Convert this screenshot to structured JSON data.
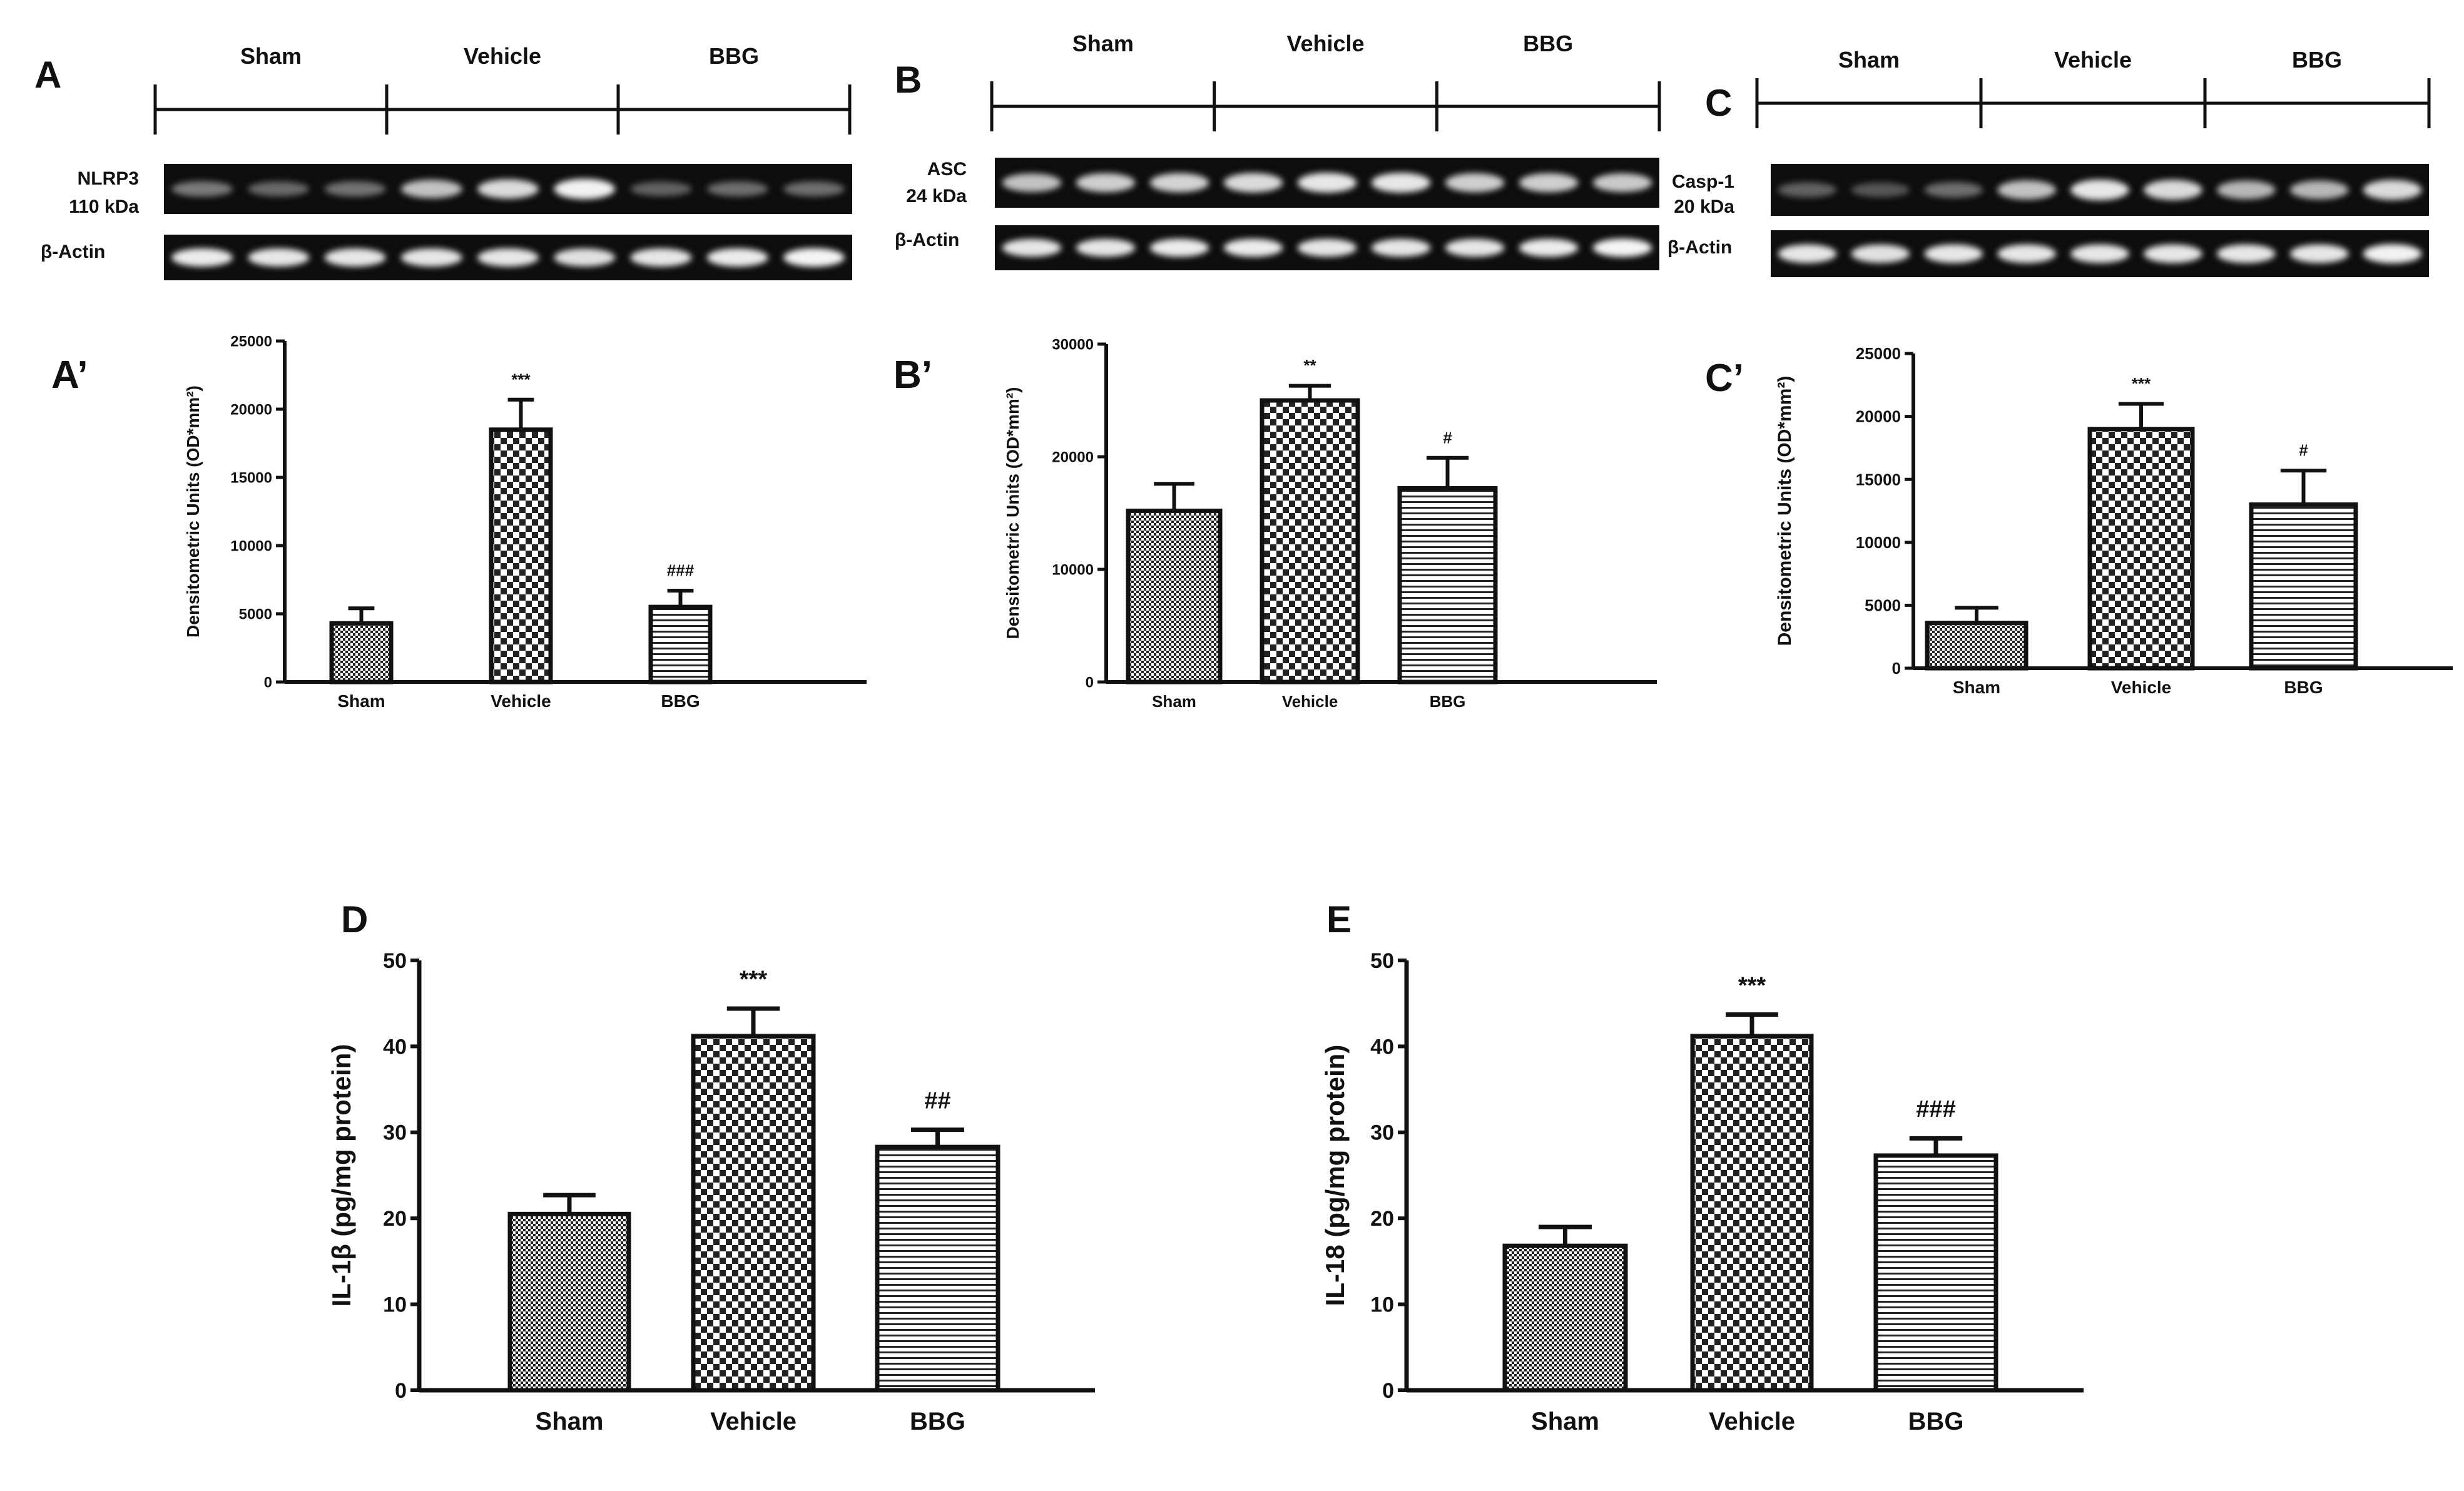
{
  "colors": {
    "ink": "#111111",
    "blot_bg": "#0d0d0d",
    "band": "#ffffff"
  },
  "blots": [
    {
      "panel_letter": "A",
      "groups": [
        "Sham",
        "Vehicle",
        "BBG"
      ],
      "target": {
        "name": "NLRP3",
        "size": "110 kDa",
        "band_intensities": [
          0.45,
          0.38,
          0.42,
          0.75,
          0.85,
          0.95,
          0.35,
          0.4,
          0.4
        ]
      },
      "loading": {
        "name": "β-Actin",
        "band_intensities": [
          0.92,
          0.9,
          0.9,
          0.9,
          0.9,
          0.88,
          0.9,
          0.92,
          0.96
        ]
      }
    },
    {
      "panel_letter": "B",
      "groups": [
        "Sham",
        "Vehicle",
        "BBG"
      ],
      "target": {
        "name": "ASC",
        "size": "24 kDa",
        "band_intensities": [
          0.75,
          0.8,
          0.82,
          0.85,
          0.9,
          0.9,
          0.8,
          0.8,
          0.78
        ]
      },
      "loading": {
        "name": "β-Actin",
        "band_intensities": [
          0.9,
          0.9,
          0.92,
          0.92,
          0.9,
          0.9,
          0.9,
          0.92,
          0.96
        ]
      }
    },
    {
      "panel_letter": "C",
      "groups": [
        "Sham",
        "Vehicle",
        "BBG"
      ],
      "target": {
        "name": "Casp-1",
        "size": "20 kDa",
        "band_intensities": [
          0.35,
          0.3,
          0.4,
          0.75,
          0.9,
          0.85,
          0.7,
          0.7,
          0.85
        ]
      },
      "loading": {
        "name": "β-Actin",
        "band_intensities": [
          0.9,
          0.88,
          0.9,
          0.9,
          0.9,
          0.9,
          0.9,
          0.9,
          0.95
        ]
      }
    }
  ],
  "chart_data": [
    {
      "panel_letter": "A’",
      "type": "bar",
      "categories": [
        "Sham",
        "Vehicle",
        "BBG"
      ],
      "values": [
        4300,
        18500,
        5500
      ],
      "errors": [
        1100,
        2200,
        1200
      ],
      "annotations": [
        "",
        "***",
        "###"
      ],
      "patterns": [
        "fine",
        "check",
        "hlines"
      ],
      "ylabel": "Densitometric Units (OD*mm²)",
      "ylim": [
        0,
        25000
      ],
      "yticks": [
        "0",
        "5000",
        "10000",
        "15000",
        "20000",
        "25000"
      ]
    },
    {
      "panel_letter": "B’",
      "type": "bar",
      "categories": [
        "Sham",
        "Vehicle",
        "BBG"
      ],
      "values": [
        15200,
        25000,
        17200
      ],
      "errors": [
        2400,
        1300,
        2700
      ],
      "annotations": [
        "",
        "**",
        "#"
      ],
      "patterns": [
        "fine",
        "check",
        "hlines"
      ],
      "ylabel": "Densitometric Units (OD*mm²)",
      "ylim": [
        0,
        30000
      ],
      "yticks": [
        "0",
        "10000",
        "20000",
        "30000"
      ]
    },
    {
      "panel_letter": "C’",
      "type": "bar",
      "categories": [
        "Sham",
        "Vehicle",
        "BBG"
      ],
      "values": [
        3600,
        19000,
        13000
      ],
      "errors": [
        1200,
        2000,
        2700
      ],
      "annotations": [
        "",
        "***",
        "#"
      ],
      "patterns": [
        "fine",
        "check",
        "hlines"
      ],
      "ylabel": "Densitometric Units (OD*mm²)",
      "ylim": [
        0,
        25000
      ],
      "yticks": [
        "0",
        "5000",
        "10000",
        "15000",
        "20000",
        "25000"
      ]
    },
    {
      "panel_letter": "D",
      "type": "bar",
      "categories": [
        "Sham",
        "Vehicle",
        "BBG"
      ],
      "values": [
        20.5,
        41.2,
        28.3
      ],
      "errors": [
        2.2,
        3.2,
        2.0
      ],
      "annotations": [
        "",
        "***",
        "##"
      ],
      "patterns": [
        "fine",
        "check",
        "hlines"
      ],
      "ylabel": "IL-1β (pg/mg protein)",
      "ylim": [
        0,
        50
      ],
      "yticks": [
        "0",
        "10",
        "20",
        "30",
        "40",
        "50"
      ]
    },
    {
      "panel_letter": "E",
      "type": "bar",
      "categories": [
        "Sham",
        "Vehicle",
        "BBG"
      ],
      "values": [
        16.8,
        41.2,
        27.3
      ],
      "errors": [
        2.2,
        2.5,
        2.0
      ],
      "annotations": [
        "",
        "***",
        "###"
      ],
      "patterns": [
        "fine",
        "check",
        "hlines"
      ],
      "ylabel": "IL-18 (pg/mg protein)",
      "ylim": [
        0,
        50
      ],
      "yticks": [
        "0",
        "10",
        "20",
        "30",
        "40",
        "50"
      ]
    }
  ]
}
